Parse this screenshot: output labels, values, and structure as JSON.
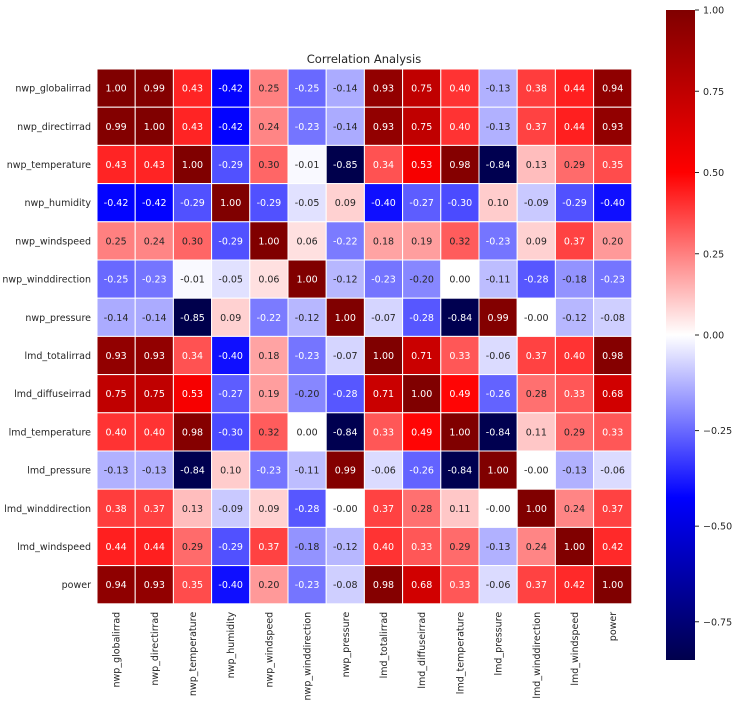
{
  "chart_data": {
    "type": "heatmap",
    "title": "Correlation Analysis",
    "xlabel": "",
    "ylabel": "",
    "labels": [
      "nwp_globalirrad",
      "nwp_directirrad",
      "nwp_temperature",
      "nwp_humidity",
      "nwp_windspeed",
      "nwp_winddirection",
      "nwp_pressure",
      "lmd_totalirrad",
      "lmd_diffuseirrad",
      "lmd_temperature",
      "lmd_pressure",
      "lmd_winddirection",
      "lmd_windspeed",
      "power"
    ],
    "values": [
      [
        1.0,
        0.99,
        0.43,
        -0.42,
        0.25,
        -0.25,
        -0.14,
        0.93,
        0.75,
        0.4,
        -0.13,
        0.38,
        0.44,
        0.94
      ],
      [
        0.99,
        1.0,
        0.43,
        -0.42,
        0.24,
        -0.23,
        -0.14,
        0.93,
        0.75,
        0.4,
        -0.13,
        0.37,
        0.44,
        0.93
      ],
      [
        0.43,
        0.43,
        1.0,
        -0.29,
        0.3,
        -0.01,
        -0.85,
        0.34,
        0.53,
        0.98,
        -0.84,
        0.13,
        0.29,
        0.35
      ],
      [
        -0.42,
        -0.42,
        -0.29,
        1.0,
        -0.29,
        -0.05,
        0.09,
        -0.4,
        -0.27,
        -0.3,
        0.1,
        -0.09,
        -0.29,
        -0.4
      ],
      [
        0.25,
        0.24,
        0.3,
        -0.29,
        1.0,
        0.06,
        -0.22,
        0.18,
        0.19,
        0.32,
        -0.23,
        0.09,
        0.37,
        0.2
      ],
      [
        -0.25,
        -0.23,
        -0.01,
        -0.05,
        0.06,
        1.0,
        -0.12,
        -0.23,
        -0.2,
        0.0,
        -0.11,
        -0.28,
        -0.18,
        -0.23
      ],
      [
        -0.14,
        -0.14,
        -0.85,
        0.09,
        -0.22,
        -0.12,
        1.0,
        -0.07,
        -0.28,
        -0.84,
        0.99,
        -0.0,
        -0.12,
        -0.08
      ],
      [
        0.93,
        0.93,
        0.34,
        -0.4,
        0.18,
        -0.23,
        -0.07,
        1.0,
        0.71,
        0.33,
        -0.06,
        0.37,
        0.4,
        0.98
      ],
      [
        0.75,
        0.75,
        0.53,
        -0.27,
        0.19,
        -0.2,
        -0.28,
        0.71,
        1.0,
        0.49,
        -0.26,
        0.28,
        0.33,
        0.68
      ],
      [
        0.4,
        0.4,
        0.98,
        -0.3,
        0.32,
        0.0,
        -0.84,
        0.33,
        0.49,
        1.0,
        -0.84,
        0.11,
        0.29,
        0.33
      ],
      [
        -0.13,
        -0.13,
        -0.84,
        0.1,
        -0.23,
        -0.11,
        0.99,
        -0.06,
        -0.26,
        -0.84,
        1.0,
        -0.0,
        -0.13,
        -0.06
      ],
      [
        0.38,
        0.37,
        0.13,
        -0.09,
        0.09,
        -0.28,
        -0.0,
        0.37,
        0.28,
        0.11,
        -0.0,
        1.0,
        0.24,
        0.37
      ],
      [
        0.44,
        0.44,
        0.29,
        -0.29,
        0.37,
        -0.18,
        -0.12,
        0.4,
        0.33,
        0.29,
        -0.13,
        0.24,
        1.0,
        0.42
      ],
      [
        0.94,
        0.93,
        0.35,
        -0.4,
        0.2,
        -0.23,
        -0.08,
        0.98,
        0.68,
        0.33,
        -0.06,
        0.37,
        0.42,
        1.0
      ]
    ],
    "value_labels": [
      [
        "1.00",
        "0.99",
        "0.43",
        "-0.42",
        "0.25",
        "-0.25",
        "-0.14",
        "0.93",
        "0.75",
        "0.40",
        "-0.13",
        "0.38",
        "0.44",
        "0.94"
      ],
      [
        "0.99",
        "1.00",
        "0.43",
        "-0.42",
        "0.24",
        "-0.23",
        "-0.14",
        "0.93",
        "0.75",
        "0.40",
        "-0.13",
        "0.37",
        "0.44",
        "0.93"
      ],
      [
        "0.43",
        "0.43",
        "1.00",
        "-0.29",
        "0.30",
        "-0.01",
        "-0.85",
        "0.34",
        "0.53",
        "0.98",
        "-0.84",
        "0.13",
        "0.29",
        "0.35"
      ],
      [
        "-0.42",
        "-0.42",
        "-0.29",
        "1.00",
        "-0.29",
        "-0.05",
        "0.09",
        "-0.40",
        "-0.27",
        "-0.30",
        "0.10",
        "-0.09",
        "-0.29",
        "-0.40"
      ],
      [
        "0.25",
        "0.24",
        "0.30",
        "-0.29",
        "1.00",
        "0.06",
        "-0.22",
        "0.18",
        "0.19",
        "0.32",
        "-0.23",
        "0.09",
        "0.37",
        "0.20"
      ],
      [
        "-0.25",
        "-0.23",
        "-0.01",
        "-0.05",
        "0.06",
        "1.00",
        "-0.12",
        "-0.23",
        "-0.20",
        "0.00",
        "-0.11",
        "-0.28",
        "-0.18",
        "-0.23"
      ],
      [
        "-0.14",
        "-0.14",
        "-0.85",
        "0.09",
        "-0.22",
        "-0.12",
        "1.00",
        "-0.07",
        "-0.28",
        "-0.84",
        "0.99",
        "-0.00",
        "-0.12",
        "-0.08"
      ],
      [
        "0.93",
        "0.93",
        "0.34",
        "-0.40",
        "0.18",
        "-0.23",
        "-0.07",
        "1.00",
        "0.71",
        "0.33",
        "-0.06",
        "0.37",
        "0.40",
        "0.98"
      ],
      [
        "0.75",
        "0.75",
        "0.53",
        "-0.27",
        "0.19",
        "-0.20",
        "-0.28",
        "0.71",
        "1.00",
        "0.49",
        "-0.26",
        "0.28",
        "0.33",
        "0.68"
      ],
      [
        "0.40",
        "0.40",
        "0.98",
        "-0.30",
        "0.32",
        "0.00",
        "-0.84",
        "0.33",
        "0.49",
        "1.00",
        "-0.84",
        "0.11",
        "0.29",
        "0.33"
      ],
      [
        "-0.13",
        "-0.13",
        "-0.84",
        "0.10",
        "-0.23",
        "-0.11",
        "0.99",
        "-0.06",
        "-0.26",
        "-0.84",
        "1.00",
        "-0.00",
        "-0.13",
        "-0.06"
      ],
      [
        "0.38",
        "0.37",
        "0.13",
        "-0.09",
        "0.09",
        "-0.28",
        "-0.00",
        "0.37",
        "0.28",
        "0.11",
        "-0.00",
        "1.00",
        "0.24",
        "0.37"
      ],
      [
        "0.44",
        "0.44",
        "0.29",
        "-0.29",
        "0.37",
        "-0.18",
        "-0.12",
        "0.40",
        "0.33",
        "0.29",
        "-0.13",
        "0.24",
        "1.00",
        "0.42"
      ],
      [
        "0.94",
        "0.93",
        "0.35",
        "-0.40",
        "0.20",
        "-0.23",
        "-0.08",
        "0.98",
        "0.68",
        "0.33",
        "-0.06",
        "0.37",
        "0.42",
        "1.00"
      ]
    ],
    "colormap": "seismic",
    "colormap_stops": [
      "#00004c",
      "#0000ff",
      "#ffffff",
      "#ff0000",
      "#800000"
    ],
    "color_range": [
      -0.85,
      1.0
    ],
    "colorbar_ticks": [
      1.0,
      0.75,
      0.5,
      0.25,
      0.0,
      -0.25,
      -0.5,
      -0.75
    ],
    "colorbar_tick_labels": [
      "1.00",
      "0.75",
      "0.50",
      "0.25",
      "0.00",
      "−0.25",
      "−0.50",
      "−0.75"
    ],
    "x_tick_rotation": "vertical",
    "cell_separators": "white",
    "legend": "colorbar-right"
  }
}
